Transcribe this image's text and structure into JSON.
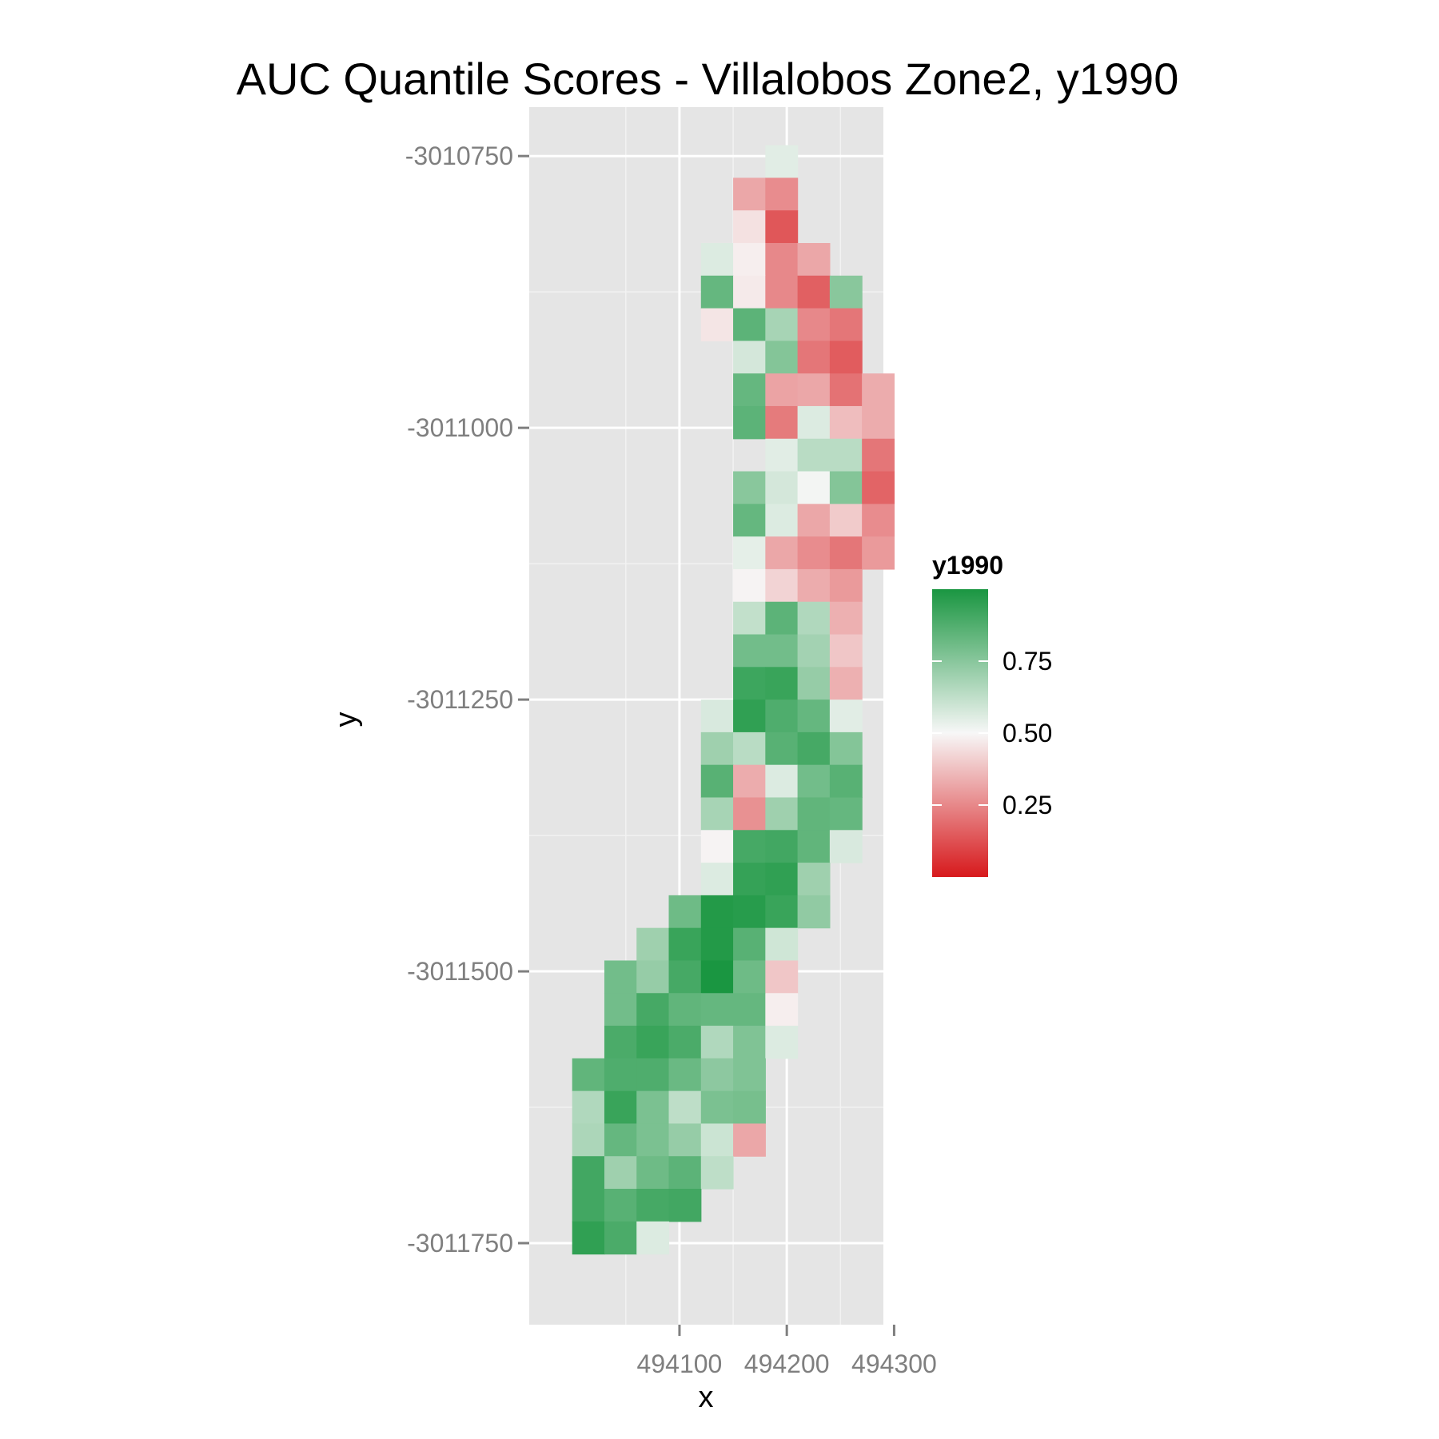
{
  "chart_data": {
    "type": "heatmap",
    "title": "AUC Quantile Scores - Villalobos Zone2, y1990",
    "xlabel": "x",
    "ylabel": "y",
    "xlim": [
      493960,
      494290
    ],
    "ylim": [
      -3011825,
      -3010705
    ],
    "x_ticks": [
      494100,
      494200,
      494300
    ],
    "x_tick_labels": [
      "494100",
      "494200",
      "494300"
    ],
    "y_ticks": [
      -3010750,
      -3011000,
      -3011250,
      -3011500,
      -3011750
    ],
    "y_tick_labels": [
      "-3010750",
      "-3011000",
      "-3011250",
      "-3011500",
      "-3011750"
    ],
    "cell_size": 30,
    "cols_x": [
      494015,
      494045,
      494075,
      494105,
      494135,
      494165,
      494195,
      494225,
      494255,
      494285
    ],
    "rows_top_y": -3010755,
    "row_step": -30,
    "grid": true,
    "legend": {
      "title": "y1990",
      "placement": "right",
      "labels": [
        "0.75",
        "0.50",
        "0.25"
      ],
      "breaks": [
        0.75,
        0.5,
        0.25
      ],
      "range": [
        0,
        1
      ]
    },
    "colors": {
      "low": "#d7191c",
      "mid": "#f7f7f7",
      "high": "#1a9641",
      "na": "#e5e5e5"
    },
    "values": [
      [
        null,
        null,
        null,
        null,
        null,
        null,
        0.55,
        null,
        null,
        null
      ],
      [
        null,
        null,
        null,
        null,
        null,
        0.32,
        0.26,
        null,
        null,
        null
      ],
      [
        null,
        null,
        null,
        null,
        null,
        0.45,
        0.14,
        null,
        null,
        null
      ],
      [
        null,
        null,
        null,
        null,
        0.56,
        0.48,
        0.25,
        0.32,
        null,
        null
      ],
      [
        null,
        null,
        null,
        null,
        0.83,
        0.47,
        0.25,
        0.16,
        0.75,
        null
      ],
      [
        null,
        null,
        null,
        null,
        0.46,
        0.85,
        0.68,
        0.25,
        0.21,
        null
      ],
      [
        null,
        null,
        null,
        null,
        null,
        0.58,
        0.76,
        0.21,
        0.15,
        null
      ],
      [
        null,
        null,
        null,
        null,
        null,
        0.83,
        0.31,
        0.32,
        0.2,
        0.33
      ],
      [
        null,
        null,
        null,
        null,
        null,
        0.85,
        0.22,
        0.56,
        0.37,
        0.33
      ],
      [
        null,
        null,
        null,
        null,
        null,
        null,
        0.55,
        0.64,
        0.64,
        0.21
      ],
      [
        null,
        null,
        null,
        null,
        null,
        0.75,
        0.58,
        0.51,
        0.76,
        0.17
      ],
      [
        null,
        null,
        null,
        null,
        null,
        0.83,
        0.56,
        0.32,
        0.4,
        0.26
      ],
      [
        null,
        null,
        null,
        null,
        null,
        0.54,
        0.32,
        0.26,
        0.21,
        0.29
      ],
      [
        null,
        null,
        null,
        null,
        null,
        0.49,
        0.42,
        0.33,
        0.29,
        null
      ],
      [
        null,
        null,
        null,
        null,
        null,
        0.62,
        0.85,
        0.66,
        0.34,
        null
      ],
      [
        null,
        null,
        null,
        null,
        null,
        0.8,
        0.8,
        0.69,
        0.39,
        null
      ],
      [
        null,
        null,
        null,
        null,
        null,
        0.92,
        0.93,
        0.72,
        0.34,
        null
      ],
      [
        null,
        null,
        null,
        null,
        0.57,
        0.95,
        0.88,
        0.83,
        0.55,
        null
      ],
      [
        null,
        null,
        null,
        null,
        0.7,
        0.64,
        0.86,
        0.9,
        0.76,
        null
      ],
      [
        null,
        null,
        null,
        null,
        0.86,
        0.33,
        0.56,
        0.8,
        0.86,
        null
      ],
      [
        null,
        null,
        null,
        null,
        0.68,
        0.27,
        0.7,
        0.84,
        0.83,
        null
      ],
      [
        null,
        null,
        null,
        null,
        0.49,
        0.9,
        0.91,
        0.84,
        0.57,
        null
      ],
      [
        null,
        null,
        null,
        null,
        0.56,
        0.94,
        0.95,
        0.7,
        null,
        null
      ],
      [
        null,
        null,
        null,
        0.81,
        0.98,
        0.97,
        0.93,
        0.73,
        null,
        null
      ],
      [
        null,
        null,
        0.7,
        0.93,
        0.98,
        0.86,
        0.59,
        null,
        null,
        null
      ],
      [
        null,
        0.8,
        0.72,
        0.9,
        1.0,
        0.81,
        0.39,
        null,
        null,
        null
      ],
      [
        null,
        0.8,
        0.9,
        0.84,
        0.83,
        0.83,
        0.48,
        null,
        null,
        null
      ],
      [
        null,
        0.89,
        0.93,
        0.89,
        0.66,
        0.77,
        0.56,
        null,
        null,
        null
      ],
      [
        0.84,
        0.88,
        0.88,
        0.82,
        0.74,
        0.77,
        null,
        null,
        null,
        null
      ],
      [
        0.66,
        0.93,
        0.78,
        0.63,
        0.78,
        0.79,
        null,
        null,
        null,
        null
      ],
      [
        0.67,
        0.83,
        0.78,
        0.72,
        0.6,
        0.32,
        null,
        null,
        null,
        null
      ],
      [
        0.91,
        0.7,
        0.81,
        0.85,
        0.63,
        null,
        null,
        null,
        null,
        null
      ],
      [
        0.91,
        0.86,
        0.9,
        0.91,
        null,
        null,
        null,
        null,
        null,
        null
      ],
      [
        0.95,
        0.89,
        0.56,
        null,
        null,
        null,
        null,
        null,
        null,
        null
      ]
    ]
  }
}
